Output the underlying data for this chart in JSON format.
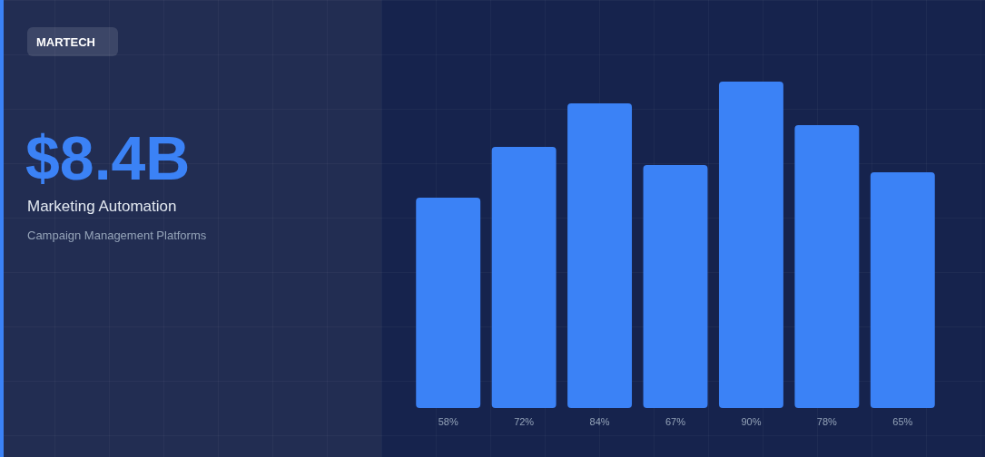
{
  "chart_data": {
    "type": "bar",
    "title": "Marketing Automation",
    "subtitle": "Campaign Management Platforms",
    "annotations": [
      "MARTECH",
      "$8.4B"
    ],
    "categories": [
      null,
      null,
      null,
      null,
      null,
      null,
      null
    ],
    "values": [
      58,
      72,
      84,
      67,
      90,
      78,
      65
    ],
    "value_labels": [
      "58%",
      "72%",
      "84%",
      "67%",
      "90%",
      "78%",
      "65%"
    ],
    "color": "#3b82f6",
    "grid": false
  }
}
